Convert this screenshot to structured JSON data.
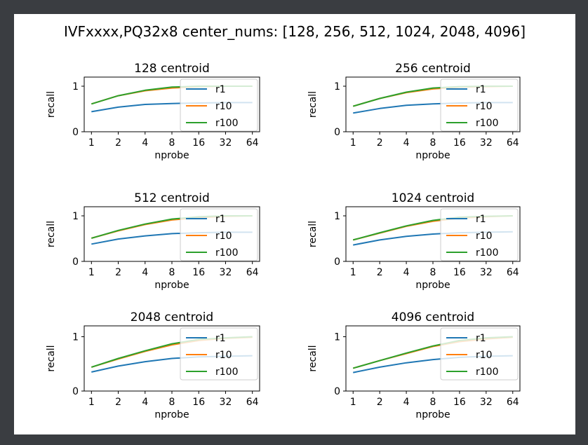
{
  "figure": {
    "suptitle": "IVFxxxx,PQ32x8  center_nums: [128, 256, 512, 1024, 2048, 4096]"
  },
  "colors": {
    "r1": "#1f77b4",
    "r10": "#ff7f0e",
    "r100": "#2ca02c",
    "background": "#ffffff",
    "page": "#3a3d41"
  },
  "chart_data": [
    {
      "type": "line",
      "title": "128 centroid",
      "xlabel": "nprobe",
      "ylabel": "recall",
      "x": [
        1,
        2,
        4,
        8,
        16,
        32,
        64
      ],
      "x_tick_labels": [
        "1",
        "2",
        "4",
        "8",
        "16",
        "32",
        "64"
      ],
      "y_tick_labels": [
        "0",
        "1"
      ],
      "ylim": [
        0,
        1.2
      ],
      "grid": false,
      "legend_position": "right",
      "series": [
        {
          "name": "r1",
          "values": [
            0.44,
            0.54,
            0.6,
            0.62,
            0.63,
            0.64,
            0.64
          ]
        },
        {
          "name": "r10",
          "values": [
            0.61,
            0.79,
            0.9,
            0.96,
            0.99,
            1.0,
            1.0
          ]
        },
        {
          "name": "r100",
          "values": [
            0.61,
            0.79,
            0.91,
            0.98,
            1.0,
            1.0,
            1.0
          ]
        }
      ]
    },
    {
      "type": "line",
      "title": "256 centroid",
      "xlabel": "nprobe",
      "ylabel": "recall",
      "x": [
        1,
        2,
        4,
        8,
        16,
        32,
        64
      ],
      "x_tick_labels": [
        "1",
        "2",
        "4",
        "8",
        "16",
        "32",
        "64"
      ],
      "y_tick_labels": [
        "0",
        "1"
      ],
      "ylim": [
        0,
        1.2
      ],
      "grid": false,
      "legend_position": "right",
      "series": [
        {
          "name": "r1",
          "values": [
            0.41,
            0.51,
            0.58,
            0.61,
            0.63,
            0.64,
            0.64
          ]
        },
        {
          "name": "r10",
          "values": [
            0.56,
            0.73,
            0.86,
            0.94,
            0.98,
            0.99,
            1.0
          ]
        },
        {
          "name": "r100",
          "values": [
            0.56,
            0.73,
            0.87,
            0.96,
            0.99,
            1.0,
            1.0
          ]
        }
      ]
    },
    {
      "type": "line",
      "title": "512 centroid",
      "xlabel": "nprobe",
      "ylabel": "recall",
      "x": [
        1,
        2,
        4,
        8,
        16,
        32,
        64
      ],
      "x_tick_labels": [
        "1",
        "2",
        "4",
        "8",
        "16",
        "32",
        "64"
      ],
      "y_tick_labels": [
        "0",
        "1"
      ],
      "ylim": [
        0,
        1.2
      ],
      "grid": false,
      "legend_position": "right",
      "series": [
        {
          "name": "r1",
          "values": [
            0.38,
            0.49,
            0.56,
            0.61,
            0.63,
            0.64,
            0.64
          ]
        },
        {
          "name": "r10",
          "values": [
            0.51,
            0.67,
            0.81,
            0.91,
            0.96,
            0.99,
            1.0
          ]
        },
        {
          "name": "r100",
          "values": [
            0.51,
            0.68,
            0.82,
            0.93,
            0.98,
            1.0,
            1.0
          ]
        }
      ]
    },
    {
      "type": "line",
      "title": "1024 centroid",
      "xlabel": "nprobe",
      "ylabel": "recall",
      "x": [
        1,
        2,
        4,
        8,
        16,
        32,
        64
      ],
      "x_tick_labels": [
        "1",
        "2",
        "4",
        "8",
        "16",
        "32",
        "64"
      ],
      "y_tick_labels": [
        "0",
        "1"
      ],
      "ylim": [
        0,
        1.2
      ],
      "grid": false,
      "legend_position": "right",
      "series": [
        {
          "name": "r1",
          "values": [
            0.36,
            0.47,
            0.55,
            0.6,
            0.63,
            0.64,
            0.65
          ]
        },
        {
          "name": "r10",
          "values": [
            0.47,
            0.62,
            0.77,
            0.88,
            0.95,
            0.98,
            1.0
          ]
        },
        {
          "name": "r100",
          "values": [
            0.47,
            0.63,
            0.78,
            0.9,
            0.97,
            0.99,
            1.0
          ]
        }
      ]
    },
    {
      "type": "line",
      "title": "2048 centroid",
      "xlabel": "nprobe",
      "ylabel": "recall",
      "x": [
        1,
        2,
        4,
        8,
        16,
        32,
        64
      ],
      "x_tick_labels": [
        "1",
        "2",
        "4",
        "8",
        "16",
        "32",
        "64"
      ],
      "y_tick_labels": [
        "0",
        "1"
      ],
      "ylim": [
        0,
        1.2
      ],
      "grid": false,
      "legend_position": "right",
      "series": [
        {
          "name": "r1",
          "values": [
            0.35,
            0.46,
            0.54,
            0.6,
            0.63,
            0.64,
            0.65
          ]
        },
        {
          "name": "r10",
          "values": [
            0.44,
            0.59,
            0.73,
            0.85,
            0.93,
            0.97,
            0.99
          ]
        },
        {
          "name": "r100",
          "values": [
            0.44,
            0.6,
            0.74,
            0.87,
            0.95,
            0.98,
            1.0
          ]
        }
      ]
    },
    {
      "type": "line",
      "title": "4096 centroid",
      "xlabel": "nprobe",
      "ylabel": "recall",
      "x": [
        1,
        2,
        4,
        8,
        16,
        32,
        64
      ],
      "x_tick_labels": [
        "1",
        "2",
        "4",
        "8",
        "16",
        "32",
        "64"
      ],
      "y_tick_labels": [
        "0",
        "1"
      ],
      "ylim": [
        0,
        1.2
      ],
      "grid": false,
      "legend_position": "right",
      "series": [
        {
          "name": "r1",
          "values": [
            0.34,
            0.44,
            0.52,
            0.58,
            0.62,
            0.64,
            0.65
          ]
        },
        {
          "name": "r10",
          "values": [
            0.42,
            0.56,
            0.69,
            0.82,
            0.91,
            0.96,
            0.99
          ]
        },
        {
          "name": "r100",
          "values": [
            0.42,
            0.56,
            0.7,
            0.83,
            0.93,
            0.98,
            1.0
          ]
        }
      ]
    }
  ]
}
